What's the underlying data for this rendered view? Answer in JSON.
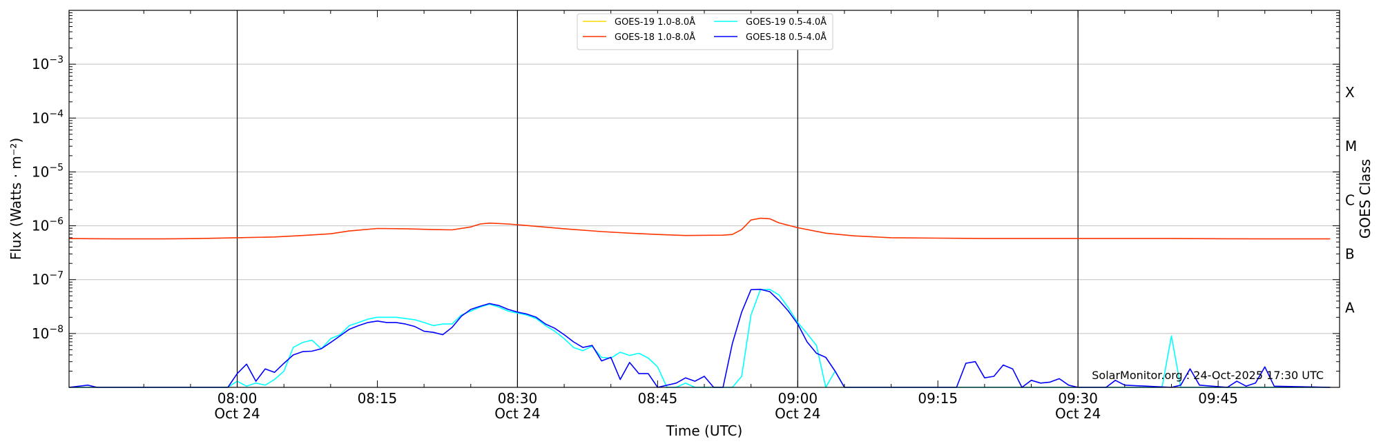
{
  "chart_data": {
    "type": "line",
    "xlabel": "Time (UTC)",
    "ylabel": "Flux (Watts · m⁻²)",
    "y2label": "GOES Class",
    "y_scale": "log",
    "ylim": [
      "1e-9",
      "1e-2"
    ],
    "xlim": [
      "07:42",
      "09:58"
    ],
    "grid": "horizontal",
    "x_ticks": [
      {
        "time": "08:00",
        "label": "08:00",
        "date": "Oct 24"
      },
      {
        "time": "08:15",
        "label": "08:15",
        "date": ""
      },
      {
        "time": "08:30",
        "label": "08:30",
        "date": "Oct 24"
      },
      {
        "time": "08:45",
        "label": "08:45",
        "date": ""
      },
      {
        "time": "09:00",
        "label": "09:00",
        "date": "Oct 24"
      },
      {
        "time": "09:15",
        "label": "09:15",
        "date": ""
      },
      {
        "time": "09:30",
        "label": "09:30",
        "date": "Oct 24"
      },
      {
        "time": "09:45",
        "label": "09:45",
        "date": ""
      }
    ],
    "vertical_markers": [
      "08:00",
      "08:30",
      "09:00",
      "09:30"
    ],
    "y_ticks": [
      {
        "value": "1e-3",
        "base": "10",
        "exp": "−3"
      },
      {
        "value": "1e-4",
        "base": "10",
        "exp": "−4"
      },
      {
        "value": "1e-5",
        "base": "10",
        "exp": "−5"
      },
      {
        "value": "1e-6",
        "base": "10",
        "exp": "−6"
      },
      {
        "value": "1e-7",
        "base": "10",
        "exp": "−7"
      },
      {
        "value": "1e-8",
        "base": "10",
        "exp": "−8"
      }
    ],
    "goes_classes": [
      {
        "label": "X",
        "value": "3e-4"
      },
      {
        "label": "M",
        "value": "3e-5"
      },
      {
        "label": "C",
        "value": "3e-6"
      },
      {
        "label": "B",
        "value": "3e-7"
      },
      {
        "label": "A",
        "value": "3e-8"
      }
    ],
    "legend": {
      "position": "upper-center"
    },
    "series": [
      {
        "name": "GOES-19 1.0-8.0Å",
        "color": "#ffd700",
        "points": []
      },
      {
        "name": "GOES-18 1.0-8.0Å",
        "color": "#ff3300",
        "points": [
          [
            "07:42",
            5.8e-07
          ],
          [
            "07:47",
            5.7e-07
          ],
          [
            "07:52",
            5.7e-07
          ],
          [
            "07:56",
            5.8e-07
          ],
          [
            "08:00",
            6e-07
          ],
          [
            "08:04",
            6.2e-07
          ],
          [
            "08:07",
            6.6e-07
          ],
          [
            "08:10",
            7.1e-07
          ],
          [
            "08:12",
            8e-07
          ],
          [
            "08:15",
            8.9e-07
          ],
          [
            "08:18",
            8.8e-07
          ],
          [
            "08:21",
            8.5e-07
          ],
          [
            "08:23",
            8.4e-07
          ],
          [
            "08:25",
            9.5e-07
          ],
          [
            "08:26",
            1.08e-06
          ],
          [
            "08:27",
            1.12e-06
          ],
          [
            "08:29",
            1.08e-06
          ],
          [
            "08:31",
            1.01e-06
          ],
          [
            "08:35",
            8.8e-07
          ],
          [
            "08:39",
            7.8e-07
          ],
          [
            "08:42",
            7.3e-07
          ],
          [
            "08:45",
            6.9e-07
          ],
          [
            "08:48",
            6.6e-07
          ],
          [
            "08:52",
            6.7e-07
          ],
          [
            "08:53",
            6.9e-07
          ],
          [
            "08:54",
            8.5e-07
          ],
          [
            "08:55",
            1.28e-06
          ],
          [
            "08:56",
            1.38e-06
          ],
          [
            "08:57",
            1.35e-06
          ],
          [
            "08:58",
            1.13e-06
          ],
          [
            "09:00",
            9.2e-07
          ],
          [
            "09:03",
            7.3e-07
          ],
          [
            "09:06",
            6.5e-07
          ],
          [
            "09:10",
            6e-07
          ],
          [
            "09:15",
            5.9e-07
          ],
          [
            "09:20",
            5.8e-07
          ],
          [
            "09:30",
            5.8e-07
          ],
          [
            "09:40",
            5.8e-07
          ],
          [
            "09:50",
            5.7e-07
          ],
          [
            "09:57",
            5.7e-07
          ]
        ]
      },
      {
        "name": "GOES-19 0.5-4.0Å",
        "color": "#00ffff",
        "points": [
          [
            "07:42",
            1e-09
          ],
          [
            "07:59",
            1e-09
          ],
          [
            "08:00",
            1.3e-09
          ],
          [
            "08:01",
            1.05e-09
          ],
          [
            "08:02",
            1.2e-09
          ],
          [
            "08:03",
            1.1e-09
          ],
          [
            "08:04",
            1.4e-09
          ],
          [
            "08:05",
            2e-09
          ],
          [
            "08:06",
            5.5e-09
          ],
          [
            "08:07",
            6.8e-09
          ],
          [
            "08:08",
            7.5e-09
          ],
          [
            "08:09",
            5.2e-09
          ],
          [
            "08:10",
            8e-09
          ],
          [
            "08:11",
            9.5e-09
          ],
          [
            "08:12",
            1.4e-08
          ],
          [
            "08:13",
            1.6e-08
          ],
          [
            "08:14",
            1.85e-08
          ],
          [
            "08:15",
            2e-08
          ],
          [
            "08:17",
            2e-08
          ],
          [
            "08:19",
            1.8e-08
          ],
          [
            "08:20",
            1.6e-08
          ],
          [
            "08:21",
            1.4e-08
          ],
          [
            "08:22",
            1.5e-08
          ],
          [
            "08:23",
            1.5e-08
          ],
          [
            "08:24",
            2.2e-08
          ],
          [
            "08:26",
            3.1e-08
          ],
          [
            "08:27",
            3.5e-08
          ],
          [
            "08:28",
            3.1e-08
          ],
          [
            "08:29",
            2.6e-08
          ],
          [
            "08:31",
            2.2e-08
          ],
          [
            "08:32",
            1.9e-08
          ],
          [
            "08:33",
            1.4e-08
          ],
          [
            "08:34",
            1.1e-08
          ],
          [
            "08:35",
            8e-09
          ],
          [
            "08:36",
            5.5e-09
          ],
          [
            "08:37",
            4.8e-09
          ],
          [
            "08:38",
            5.8e-09
          ],
          [
            "08:39",
            3.6e-09
          ],
          [
            "08:40",
            3.5e-09
          ],
          [
            "08:41",
            4.5e-09
          ],
          [
            "08:42",
            3.9e-09
          ],
          [
            "08:43",
            4.3e-09
          ],
          [
            "08:44",
            3.5e-09
          ],
          [
            "08:45",
            2.4e-09
          ],
          [
            "08:46",
            1e-09
          ],
          [
            "08:47",
            1e-09
          ],
          [
            "08:48",
            1.2e-09
          ],
          [
            "08:49",
            1e-09
          ],
          [
            "08:53",
            1e-09
          ],
          [
            "08:54",
            1.6e-09
          ],
          [
            "08:55",
            2.2e-08
          ],
          [
            "08:56",
            6.5e-08
          ],
          [
            "08:57",
            6.6e-08
          ],
          [
            "08:58",
            5.2e-08
          ],
          [
            "08:59",
            3e-08
          ],
          [
            "09:00",
            1.6e-08
          ],
          [
            "09:01",
            1e-08
          ],
          [
            "09:02",
            6e-09
          ],
          [
            "09:03",
            1e-09
          ],
          [
            "09:04",
            2e-09
          ],
          [
            "09:05",
            1e-09
          ],
          [
            "09:39",
            1e-09
          ],
          [
            "09:40",
            9e-09
          ],
          [
            "09:41",
            1e-09
          ],
          [
            "09:57",
            1e-09
          ]
        ]
      },
      {
        "name": "GOES-18 0.5-4.0Å",
        "color": "#0000ff",
        "points": [
          [
            "07:42",
            1e-09
          ],
          [
            "07:44",
            1.1e-09
          ],
          [
            "07:45",
            1e-09
          ],
          [
            "07:59",
            1e-09
          ],
          [
            "08:00",
            1.8e-09
          ],
          [
            "08:01",
            2.7e-09
          ],
          [
            "08:02",
            1.3e-09
          ],
          [
            "08:03",
            2.2e-09
          ],
          [
            "08:04",
            1.9e-09
          ],
          [
            "08:05",
            2.8e-09
          ],
          [
            "08:06",
            4e-09
          ],
          [
            "08:07",
            4.6e-09
          ],
          [
            "08:08",
            4.7e-09
          ],
          [
            "08:09",
            5.2e-09
          ],
          [
            "08:10",
            6.8e-09
          ],
          [
            "08:11",
            9e-09
          ],
          [
            "08:12",
            1.2e-08
          ],
          [
            "08:13",
            1.4e-08
          ],
          [
            "08:14",
            1.6e-08
          ],
          [
            "08:15",
            1.7e-08
          ],
          [
            "08:16",
            1.6e-08
          ],
          [
            "08:17",
            1.6e-08
          ],
          [
            "08:18",
            1.5e-08
          ],
          [
            "08:19",
            1.35e-08
          ],
          [
            "08:20",
            1.1e-08
          ],
          [
            "08:21",
            1.05e-08
          ],
          [
            "08:22",
            9.5e-09
          ],
          [
            "08:23",
            1.3e-08
          ],
          [
            "08:24",
            2.1e-08
          ],
          [
            "08:25",
            2.8e-08
          ],
          [
            "08:26",
            3.2e-08
          ],
          [
            "08:27",
            3.6e-08
          ],
          [
            "08:28",
            3.3e-08
          ],
          [
            "08:29",
            2.8e-08
          ],
          [
            "08:30",
            2.5e-08
          ],
          [
            "08:31",
            2.3e-08
          ],
          [
            "08:32",
            2e-08
          ],
          [
            "08:33",
            1.5e-08
          ],
          [
            "08:34",
            1.25e-08
          ],
          [
            "08:35",
            9.5e-09
          ],
          [
            "08:36",
            7e-09
          ],
          [
            "08:37",
            5.5e-09
          ],
          [
            "08:38",
            6e-09
          ],
          [
            "08:39",
            3.1e-09
          ],
          [
            "08:40",
            3.6e-09
          ],
          [
            "08:41",
            1.4e-09
          ],
          [
            "08:42",
            2.9e-09
          ],
          [
            "08:43",
            1.8e-09
          ],
          [
            "08:44",
            1.8e-09
          ],
          [
            "08:45",
            1e-09
          ],
          [
            "08:47",
            1.2e-09
          ],
          [
            "08:48",
            1.5e-09
          ],
          [
            "08:49",
            1.3e-09
          ],
          [
            "08:50",
            1.6e-09
          ],
          [
            "08:51",
            1e-09
          ],
          [
            "08:52",
            1e-09
          ],
          [
            "08:53",
            6.5e-09
          ],
          [
            "08:54",
            2.5e-08
          ],
          [
            "08:55",
            6.5e-08
          ],
          [
            "08:56",
            6.6e-08
          ],
          [
            "08:57",
            6e-08
          ],
          [
            "08:58",
            4.1e-08
          ],
          [
            "08:59",
            2.6e-08
          ],
          [
            "09:00",
            1.5e-08
          ],
          [
            "09:01",
            7e-09
          ],
          [
            "09:02",
            4.3e-09
          ],
          [
            "09:03",
            3.6e-09
          ],
          [
            "09:04",
            2e-09
          ],
          [
            "09:05",
            1e-09
          ],
          [
            "09:17",
            1e-09
          ],
          [
            "09:18",
            2.8e-09
          ],
          [
            "09:19",
            3e-09
          ],
          [
            "09:20",
            1.5e-09
          ],
          [
            "09:21",
            1.6e-09
          ],
          [
            "09:22",
            2.6e-09
          ],
          [
            "09:23",
            2.2e-09
          ],
          [
            "09:24",
            1e-09
          ],
          [
            "09:25",
            1.35e-09
          ],
          [
            "09:26",
            1.2e-09
          ],
          [
            "09:27",
            1.25e-09
          ],
          [
            "09:28",
            1.45e-09
          ],
          [
            "09:29",
            1.1e-09
          ],
          [
            "09:30",
            1e-09
          ],
          [
            "09:33",
            1e-09
          ],
          [
            "09:34",
            1.35e-09
          ],
          [
            "09:35",
            1.1e-09
          ],
          [
            "09:40",
            1e-09
          ],
          [
            "09:41",
            1.1e-09
          ],
          [
            "09:42",
            2.2e-09
          ],
          [
            "09:43",
            1.1e-09
          ],
          [
            "09:46",
            1e-09
          ],
          [
            "09:47",
            1.3e-09
          ],
          [
            "09:48",
            1.05e-09
          ],
          [
            "09:49",
            1.2e-09
          ],
          [
            "09:50",
            2.4e-09
          ],
          [
            "09:51",
            1.05e-09
          ],
          [
            "09:57",
            1e-09
          ]
        ]
      }
    ],
    "credit": "SolarMonitor.org : 24-Oct-2025 17:30 UTC"
  }
}
